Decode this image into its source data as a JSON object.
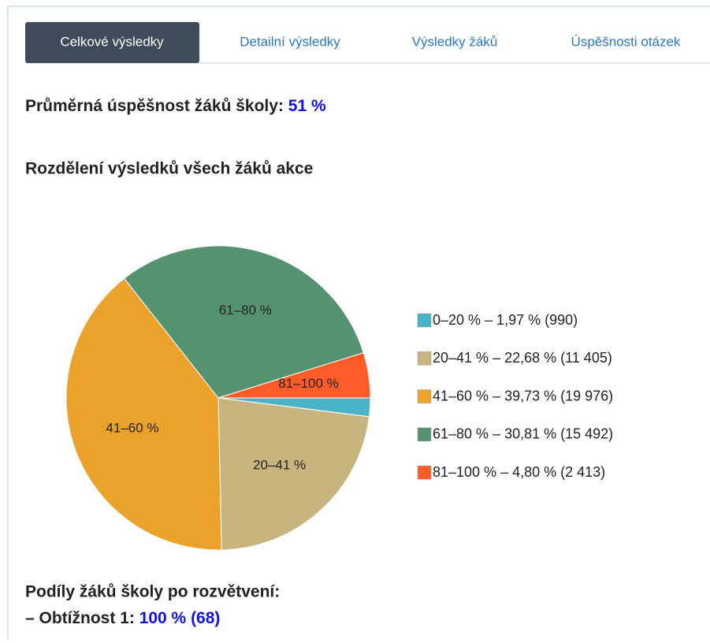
{
  "tabs": [
    "Celkové výsledky",
    "Detailní výsledky",
    "Výsledky žáků",
    "Úspěšnosti otázek"
  ],
  "average": {
    "label": "Průměrná úspěšnost žáků školy:",
    "value": "51 %"
  },
  "chart_data": {
    "type": "pie",
    "title": "Rozdělení výsledků všech žáků akce",
    "categories": [
      "0–20 %",
      "20–41 %",
      "41–60 %",
      "61–80 %",
      "81–100 %"
    ],
    "values": [
      1.97,
      22.68,
      39.73,
      30.81,
      4.8
    ],
    "legend_labels": [
      "0–20 % – 1,97 % (990)",
      "20–41 % – 22,68 % (11 405)",
      "41–60 % – 39,73 % (19 976)",
      "61–80 % – 30,81 % (15 492)",
      "81–100 % – 4,80 % (2 413)"
    ],
    "colors": [
      "#4bb3c8",
      "#c8b47f",
      "#eaa22a",
      "#559370",
      "#fe5b2a"
    ],
    "legend": "right"
  },
  "branching": {
    "title": "Podíly žáků školy po rozvětvení:",
    "label": "– Obtížnost 1:",
    "value": "100 % (68)"
  }
}
